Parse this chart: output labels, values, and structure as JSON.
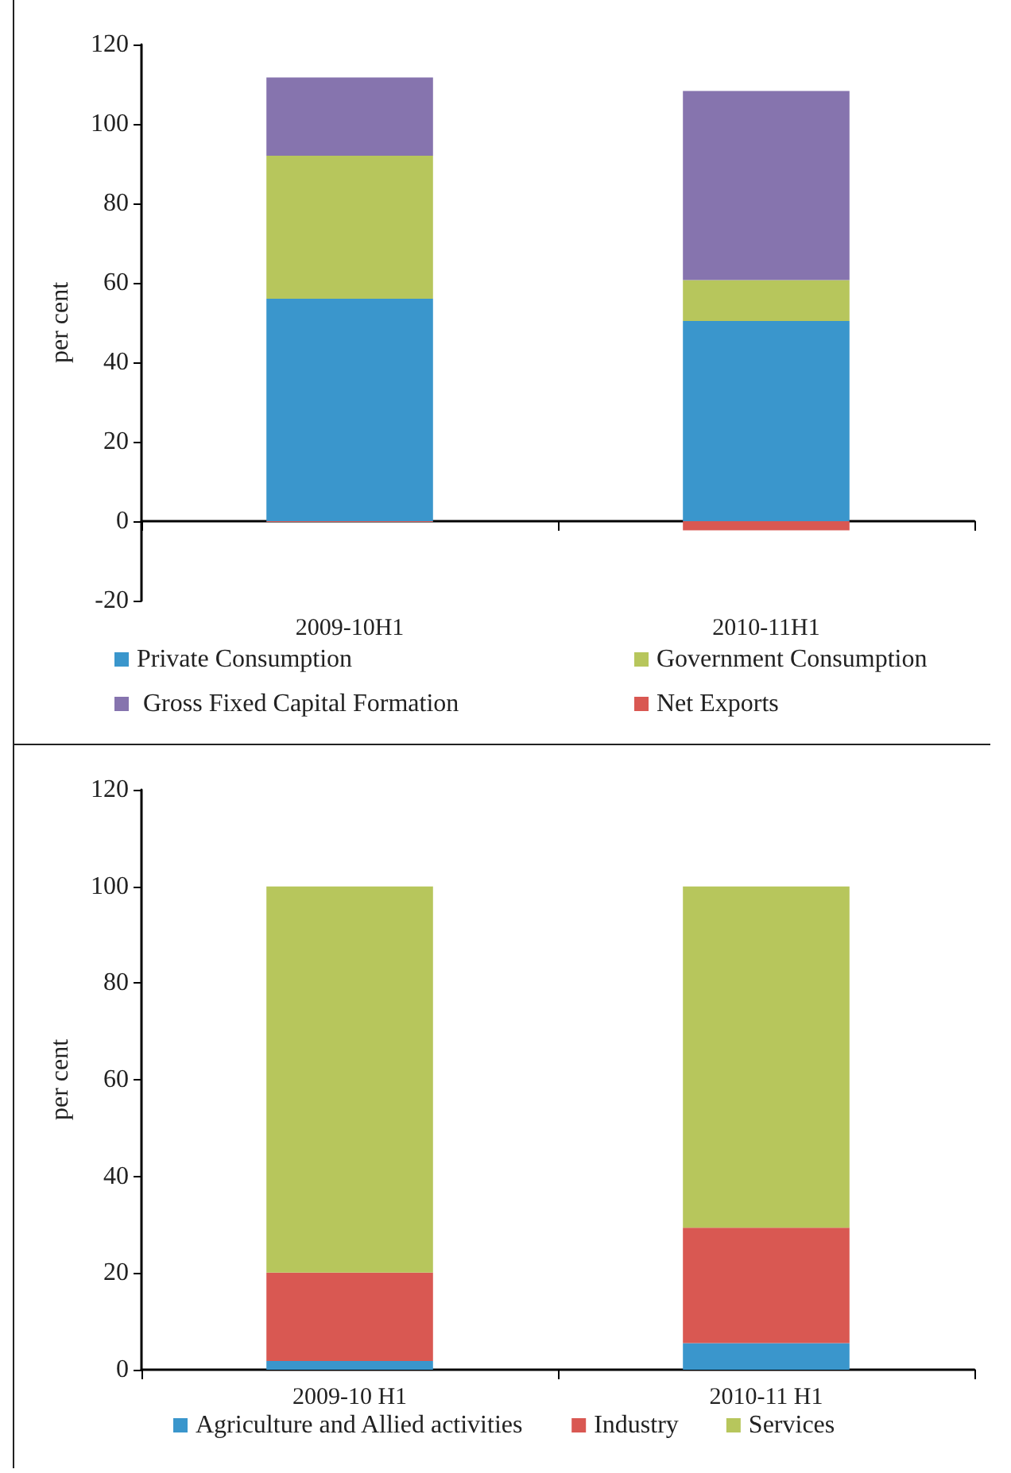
{
  "chart_data": [
    {
      "type": "bar",
      "stacked": true,
      "ylabel": "per cent",
      "categories": [
        "2009-10H1",
        "2010-11H1"
      ],
      "ylim": [
        -20,
        120
      ],
      "yticks": [
        -20,
        0,
        20,
        40,
        60,
        80,
        100,
        120
      ],
      "legend": "bottom",
      "series": [
        {
          "name": "Private Consumption",
          "color": "#3a96cc",
          "values": [
            56,
            50.4
          ]
        },
        {
          "name": "Government Consumption",
          "color": "#b7c65c",
          "values": [
            36,
            10.3
          ]
        },
        {
          "name": " Gross Fixed Capital Formation",
          "color": "#8674ae",
          "values": [
            19.7,
            47.6
          ]
        },
        {
          "name": "Net Exports",
          "color": "#d95852",
          "values": [
            -0.2,
            -2.3
          ]
        }
      ]
    },
    {
      "type": "bar",
      "stacked": true,
      "ylabel": "per cent",
      "categories": [
        "2009-10 H1",
        "2010-11 H1"
      ],
      "ylim": [
        0,
        120
      ],
      "yticks": [
        0,
        20,
        40,
        60,
        80,
        100,
        120
      ],
      "legend": "bottom",
      "series": [
        {
          "name": "Agriculture and Allied activities",
          "color": "#3a96cc",
          "values": [
            1.8,
            5.5
          ]
        },
        {
          "name": "Industry",
          "color": "#d95852",
          "values": [
            18.3,
            23.9
          ]
        },
        {
          "name": "Services",
          "color": "#b7c65c",
          "values": [
            79.9,
            70.6
          ]
        }
      ]
    }
  ]
}
